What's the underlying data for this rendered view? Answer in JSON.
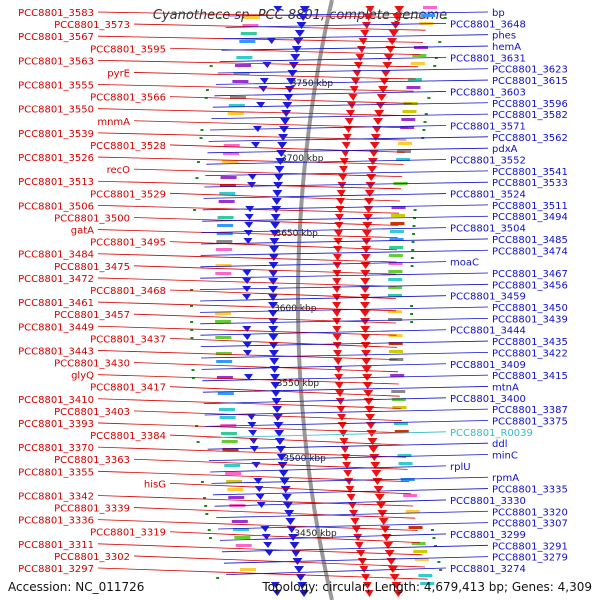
{
  "title": "Cyanothece sp. PCC 8801, complete genome",
  "accession": "Accession: NC_011726",
  "topology": "Topology: circular; Length: 4,679,413 bp; Genes: 4,309",
  "colors": {
    "left_label": "#d40000",
    "right_label": "#1010c8",
    "rna_label": "#33bbcc",
    "forward_feature": "#ee1111",
    "reverse_feature": "#1a1ae0",
    "backbone": "#999999"
  },
  "ticks": [
    "3750 kbp",
    "3700 kbp",
    "3650 kbp",
    "3600 kbp",
    "3550 kbp",
    "3500 kbp",
    "3450 kbp"
  ],
  "left_labels": [
    "PCC8801_3583",
    "PCC8801_3573",
    "PCC8801_3567",
    "PCC8801_3595",
    "PCC8801_3563",
    "pyrE",
    "PCC8801_3555",
    "PCC8801_3566",
    "PCC8801_3550",
    "mnmA",
    "PCC8801_3539",
    "PCC8801_3528",
    "PCC8801_3526",
    "recO",
    "PCC8801_3513",
    "PCC8801_3529",
    "PCC8801_3506",
    "PCC8801_3500",
    "gatA",
    "PCC8801_3495",
    "PCC8801_3484",
    "PCC8801_3475",
    "PCC8801_3472",
    "PCC8801_3468",
    "PCC8801_3461",
    "PCC8801_3457",
    "PCC8801_3449",
    "PCC8801_3437",
    "PCC8801_3443",
    "PCC8801_3430",
    "glyQ",
    "PCC8801_3417",
    "PCC8801_3410",
    "PCC8801_3403",
    "PCC8801_3393",
    "PCC8801_3384",
    "PCC8801_3370",
    "PCC8801_3363",
    "PCC8801_3355",
    "hisG",
    "PCC8801_3342",
    "PCC8801_3339",
    "PCC8801_3336",
    "PCC8801_3319",
    "PCC8801_3311",
    "PCC8801_3302",
    "PCC8801_3297"
  ],
  "right_labels": [
    "bp",
    "PCC8801_3648",
    "phes",
    "hemA",
    "PCC8801_3631",
    "PCC8801_3623",
    "PCC8801_3615",
    "PCC8801_3603",
    "PCC8801_3596",
    "PCC8801_3582",
    "PCC8801_3571",
    "PCC8801_3562",
    "pdxA",
    "PCC8801_3552",
    "PCC8801_3541",
    "PCC8801_3533",
    "PCC8801_3524",
    "PCC8801_3511",
    "PCC8801_3494",
    "PCC8801_3504",
    "PCC8801_3485",
    "PCC8801_3474",
    "moaC",
    "PCC8801_3467",
    "PCC8801_3456",
    "PCC8801_3459",
    "PCC8801_3450",
    "PCC8801_3439",
    "PCC8801_3444",
    "PCC8801_3435",
    "PCC8801_3422",
    "PCC8801_3409",
    "PCC8801_3415",
    "mtnA",
    "PCC8801_3400",
    "PCC8801_3387",
    "PCC8801_3375",
    "PCC8801_R0039",
    "ddl",
    "minC",
    "rplU",
    "rpmA",
    "PCC8801_3335",
    "PCC8801_3330",
    "PCC8801_3320",
    "PCC8801_3307",
    "PCC8801_3299",
    "PCC8801_3291",
    "PCC8801_3279",
    "PCC8801_3274"
  ]
}
